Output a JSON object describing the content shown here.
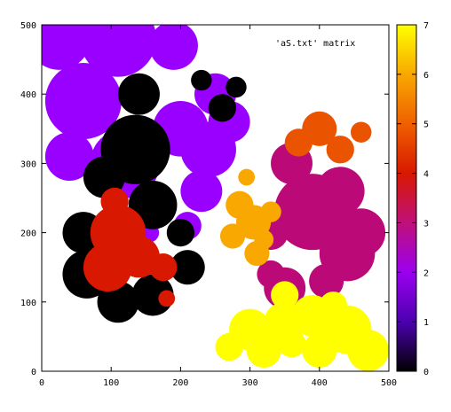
{
  "chart_data": {
    "type": "heatmap",
    "title": "",
    "legend": "'aS.txt' matrix",
    "legend_position": "top-right",
    "xlabel": "",
    "ylabel": "",
    "xlim": [
      0,
      500
    ],
    "ylim": [
      0,
      500
    ],
    "x_ticks": [
      "0",
      "100",
      "200",
      "300",
      "400",
      "500"
    ],
    "y_ticks": [
      "0",
      "100",
      "200",
      "300",
      "400",
      "500"
    ],
    "colorbar": {
      "range": [
        0,
        7
      ],
      "ticks": [
        "0",
        "1",
        "2",
        "3",
        "4",
        "5",
        "6",
        "7"
      ],
      "palette": [
        "#000000",
        "#4c00b0",
        "#9b00f0",
        "#c0107a",
        "#d81800",
        "#f06000",
        "#f8a800",
        "#ffff00"
      ]
    },
    "regions": [
      {
        "value": 2.2,
        "color": "#9900ff",
        "blobs": [
          [
            25,
            480,
            45
          ],
          [
            110,
            480,
            55
          ],
          [
            190,
            470,
            35
          ],
          [
            60,
            390,
            55
          ],
          [
            40,
            310,
            35
          ],
          [
            120,
            300,
            50
          ],
          [
            200,
            350,
            40
          ],
          [
            240,
            320,
            40
          ],
          [
            270,
            360,
            30
          ],
          [
            230,
            260,
            30
          ],
          [
            210,
            210,
            20
          ],
          [
            250,
            400,
            30
          ],
          [
            110,
            300,
            20
          ],
          [
            155,
            200,
            14
          ]
        ]
      },
      {
        "value": 0.3,
        "color": "#000000",
        "blobs": [
          [
            140,
            400,
            30
          ],
          [
            135,
            320,
            50
          ],
          [
            90,
            280,
            30
          ],
          [
            160,
            240,
            35
          ],
          [
            60,
            200,
            30
          ],
          [
            65,
            140,
            35
          ],
          [
            110,
            100,
            30
          ],
          [
            160,
            110,
            30
          ],
          [
            210,
            150,
            25
          ],
          [
            200,
            200,
            20
          ],
          [
            280,
            410,
            15
          ],
          [
            260,
            380,
            20
          ],
          [
            230,
            420,
            15
          ]
        ]
      },
      {
        "value": 4.1,
        "color": "#d81800",
        "blobs": [
          [
            110,
            200,
            40
          ],
          [
            95,
            150,
            35
          ],
          [
            140,
            165,
            30
          ],
          [
            105,
            245,
            20
          ],
          [
            175,
            150,
            20
          ],
          [
            180,
            105,
            12
          ]
        ]
      },
      {
        "value": 2.9,
        "color": "#bb0a78",
        "blobs": [
          [
            390,
            230,
            55
          ],
          [
            440,
            170,
            40
          ],
          [
            430,
            260,
            35
          ],
          [
            360,
            300,
            30
          ],
          [
            350,
            120,
            30
          ],
          [
            410,
            130,
            25
          ],
          [
            460,
            200,
            35
          ],
          [
            330,
            200,
            25
          ],
          [
            330,
            140,
            20
          ]
        ]
      },
      {
        "value": 5.2,
        "color": "#ea5400",
        "blobs": [
          [
            400,
            350,
            25
          ],
          [
            370,
            330,
            20
          ],
          [
            430,
            320,
            20
          ],
          [
            460,
            345,
            15
          ]
        ]
      },
      {
        "value": 5.8,
        "color": "#f8a800",
        "blobs": [
          [
            305,
            215,
            25
          ],
          [
            285,
            240,
            20
          ],
          [
            275,
            195,
            18
          ],
          [
            310,
            170,
            18
          ],
          [
            330,
            230,
            15
          ],
          [
            295,
            280,
            12
          ],
          [
            320,
            190,
            14
          ]
        ]
      },
      {
        "value": 6.8,
        "color": "#ffff00",
        "blobs": [
          [
            300,
            60,
            30
          ],
          [
            350,
            70,
            30
          ],
          [
            390,
            80,
            30
          ],
          [
            440,
            60,
            35
          ],
          [
            470,
            30,
            30
          ],
          [
            400,
            30,
            25
          ],
          [
            320,
            30,
            25
          ],
          [
            270,
            35,
            20
          ],
          [
            360,
            40,
            20
          ],
          [
            350,
            110,
            20
          ],
          [
            420,
            95,
            20
          ]
        ]
      }
    ]
  }
}
